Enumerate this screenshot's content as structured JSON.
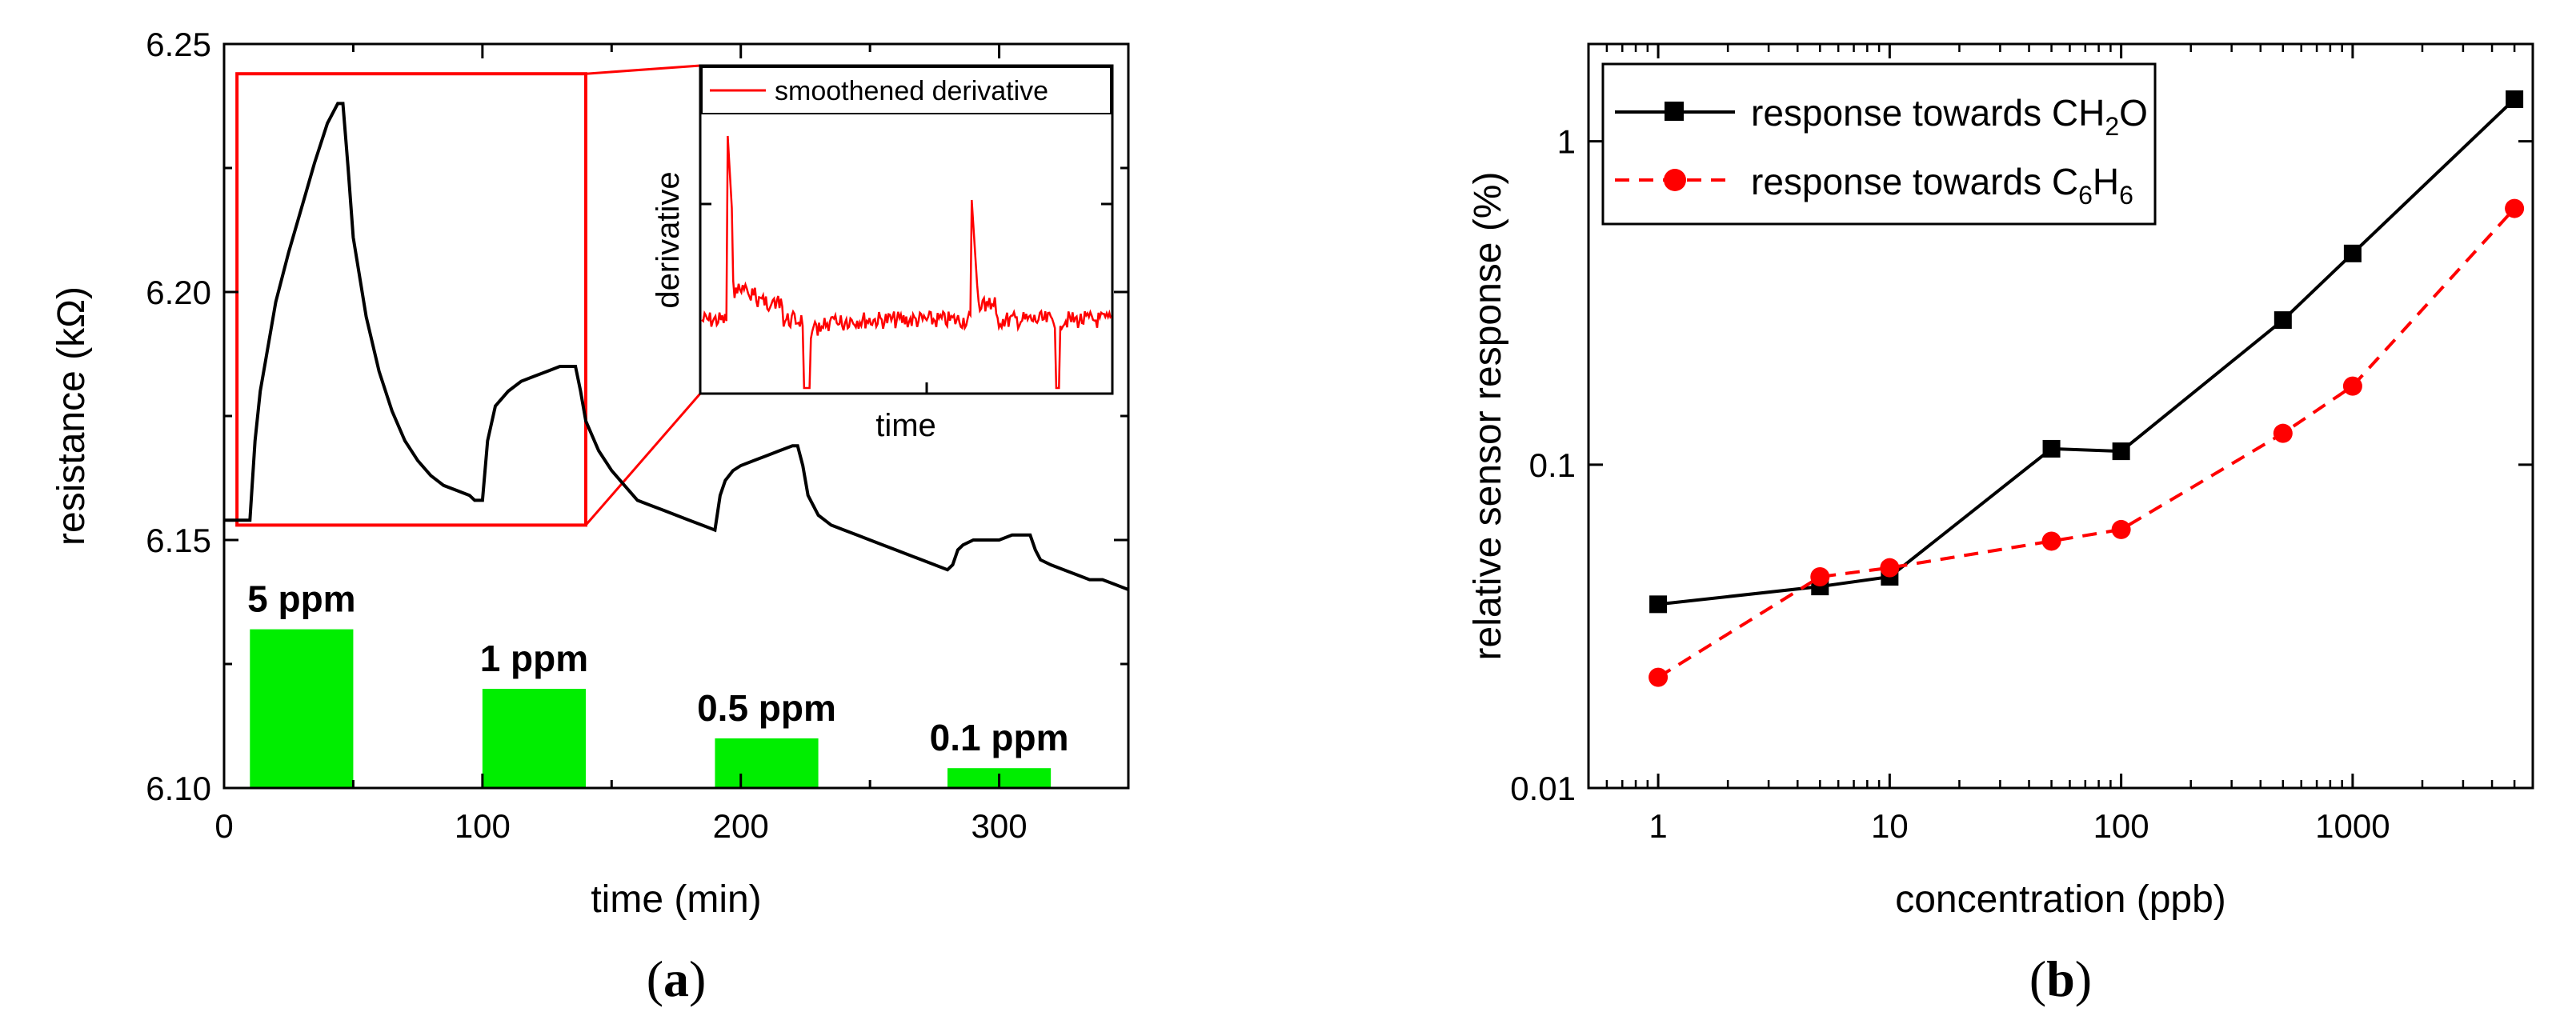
{
  "colors": {
    "black": "#000000",
    "red": "#ff0000",
    "green": "#00ee00"
  },
  "chart_data": [
    {
      "type": "line",
      "panel_label": "a",
      "xlabel": "time (min)",
      "ylabel": "resistance (kΩ)",
      "xlim": [
        0,
        350
      ],
      "ylim": [
        6.1,
        6.25
      ],
      "xticks": [
        "0",
        "100",
        "200",
        "300"
      ],
      "yticks": [
        "6.10",
        "6.15",
        "6.20",
        "6.25"
      ],
      "series": [
        {
          "color": "#000000",
          "x": [
            0,
            10,
            12,
            14,
            16,
            20,
            25,
            30,
            35,
            40,
            42,
            44,
            46,
            48,
            50,
            55,
            60,
            65,
            70,
            75,
            80,
            85,
            90,
            95,
            97,
            100,
            102,
            105,
            110,
            115,
            120,
            125,
            130,
            133,
            136,
            138,
            140,
            145,
            150,
            155,
            160,
            165,
            170,
            175,
            180,
            185,
            190,
            192,
            194,
            197,
            200,
            205,
            210,
            215,
            220,
            222,
            224,
            226,
            228,
            230,
            235,
            240,
            245,
            250,
            255,
            260,
            265,
            270,
            275,
            280,
            282,
            284,
            286,
            290,
            295,
            300,
            305,
            310,
            312,
            314,
            316,
            320,
            325,
            330,
            335,
            340,
            345,
            350
          ],
          "values": [
            6.154,
            6.154,
            6.17,
            6.18,
            6.186,
            6.198,
            6.208,
            6.217,
            6.226,
            6.234,
            6.236,
            6.238,
            6.238,
            6.225,
            6.211,
            6.195,
            6.184,
            6.176,
            6.17,
            6.166,
            6.163,
            6.161,
            6.16,
            6.159,
            6.158,
            6.158,
            6.17,
            6.177,
            6.18,
            6.182,
            6.183,
            6.184,
            6.185,
            6.185,
            6.185,
            6.18,
            6.174,
            6.168,
            6.164,
            6.161,
            6.158,
            6.157,
            6.156,
            6.155,
            6.154,
            6.153,
            6.152,
            6.159,
            6.162,
            6.164,
            6.165,
            6.166,
            6.167,
            6.168,
            6.169,
            6.169,
            6.165,
            6.159,
            6.157,
            6.155,
            6.153,
            6.152,
            6.151,
            6.15,
            6.149,
            6.148,
            6.147,
            6.146,
            6.145,
            6.144,
            6.145,
            6.148,
            6.149,
            6.15,
            6.15,
            6.15,
            6.151,
            6.151,
            6.151,
            6.148,
            6.146,
            6.145,
            6.144,
            6.143,
            6.142,
            6.142,
            6.141,
            6.14
          ]
        }
      ],
      "pulses": [
        {
          "label": "5 ppm",
          "x_start": 10,
          "x_end": 50,
          "top": 6.132
        },
        {
          "label": "1 ppm",
          "x_start": 100,
          "x_end": 140,
          "top": 6.12
        },
        {
          "label": "0.5 ppm",
          "x_start": 190,
          "x_end": 230,
          "top": 6.11
        },
        {
          "label": "0.1 ppm",
          "x_start": 280,
          "x_end": 320,
          "top": 6.104
        }
      ],
      "highlight": {
        "x_start": 5,
        "x_end": 140,
        "y_low": 6.153,
        "y_high": 6.244
      },
      "inset": {
        "xlabel": "time",
        "ylabel": "derivative",
        "legend": "smoothened derivative",
        "series_color": "#ff0000"
      }
    },
    {
      "type": "line",
      "panel_label": "b",
      "xlabel": "concentration (ppb)",
      "ylabel": "relative sensor response (%)",
      "xscale": "log",
      "yscale": "log",
      "xlim": [
        0.5,
        6000
      ],
      "ylim": [
        0.01,
        2
      ],
      "xticks": [
        "1",
        "10",
        "100",
        "1000"
      ],
      "yticks": [
        "0.01",
        "0.1",
        "1"
      ],
      "legend_position": "top-left",
      "series": [
        {
          "name_parts": {
            "prefix": "response towards CH",
            "sub1": "2",
            "mid": "O",
            "sub2": "",
            "suffix": ""
          },
          "color": "#000000",
          "marker": "square",
          "dash": "solid",
          "x": [
            1,
            5,
            10,
            50,
            100,
            500,
            1000,
            5000
          ],
          "values": [
            0.037,
            0.042,
            0.045,
            0.112,
            0.11,
            0.28,
            0.45,
            1.35
          ]
        },
        {
          "name_parts": {
            "prefix": "response towards C",
            "sub1": "6",
            "mid": "H",
            "sub2": "6",
            "suffix": ""
          },
          "color": "#ff0000",
          "marker": "circle",
          "dash": "dashed",
          "x": [
            1,
            5,
            10,
            50,
            100,
            500,
            1000,
            5000
          ],
          "values": [
            0.022,
            0.045,
            0.048,
            0.058,
            0.063,
            0.125,
            0.175,
            0.62
          ]
        }
      ]
    }
  ]
}
